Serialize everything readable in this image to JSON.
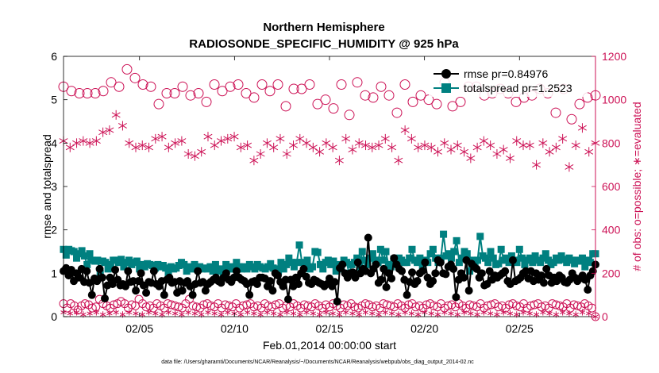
{
  "colors": {
    "rmse": "#000000",
    "spread": "#008080",
    "obs": "#cc1155",
    "axis": "#000000"
  },
  "footer": "data file: /Users/gharamti/Documents/NCAR/Reanalysis/~/Documents/NCAR/Reanalysis/webpub/obs_diag_output_2014-02.nc",
  "chart_data": {
    "type": "line",
    "title": "Northern Hemisphere",
    "subtitle": "RADIOSONDE_SPECIFIC_HUMIDITY @ 925 hPa",
    "xlabel": "Feb.01,2014 00:00:00 start",
    "ylabel_left": "rmse and totalspread",
    "ylabel_right": "# of obs: o=possible; ∗=evaluated",
    "x_day_start": 1,
    "x_day_end": 29,
    "xlim": [
      1,
      29
    ],
    "ylim_left": [
      0,
      6
    ],
    "ylim_right": [
      0,
      1200
    ],
    "xticks": [
      {
        "day": 5,
        "label": "02/05"
      },
      {
        "day": 10,
        "label": "02/10"
      },
      {
        "day": 15,
        "label": "02/15"
      },
      {
        "day": 20,
        "label": "02/20"
      },
      {
        "day": 25,
        "label": "02/25"
      }
    ],
    "yticks_left": [
      "0",
      "1",
      "2",
      "3",
      "4",
      "5",
      "6"
    ],
    "yticks_right": [
      "0",
      "200",
      "400",
      "600",
      "800",
      "1000",
      "1200"
    ],
    "legend": [
      {
        "name": "rmse pr=0.84976",
        "key": "rmse"
      },
      {
        "name": "totalspread pr=1.2523",
        "key": "spread"
      }
    ],
    "rmse": [
      1.05,
      1.12,
      0.95,
      1.08,
      0.82,
      1.0,
      0.9,
      1.1,
      0.8,
      1.05,
      0.78,
      0.5,
      0.88,
      0.82,
      1.1,
      0.9,
      0.42,
      0.72,
      0.9,
      0.75,
      1.08,
      0.85,
      0.72,
      0.75,
      0.7,
      1.05,
      0.8,
      0.82,
      0.6,
      0.82,
      1.0,
      0.72,
      0.55,
      0.8,
      0.78,
      1.05,
      0.75,
      0.7,
      0.82,
      0.5,
      0.85,
      0.9,
      0.78,
      0.8,
      0.55,
      0.82,
      0.6,
      0.78,
      0.82,
      0.7,
      0.5,
      0.75,
      1.05,
      0.78,
      0.8,
      0.6,
      0.75,
      0.8,
      0.85,
      0.9,
      0.82,
      0.78,
      0.9,
      1.0,
      0.85,
      0.8,
      0.9,
      1.05,
      0.9,
      0.85,
      0.82,
      0.75,
      0.5,
      0.8,
      0.82,
      0.75,
      0.9,
      0.9,
      0.88,
      0.7,
      0.82,
      0.6,
      1.0,
      0.95,
      0.8,
      0.7,
      0.85,
      0.4,
      0.85,
      0.7,
      0.9,
      0.75,
      1.0,
      1.1,
      0.92,
      0.78,
      0.75,
      0.85,
      0.82,
      0.78,
      0.75,
      0.7,
      0.75,
      0.88,
      0.7,
      0.8,
      0.35,
      1.12,
      1.2,
      1.0,
      0.9,
      1.0,
      1.02,
      0.9,
      1.25,
      1.0,
      1.1,
      1.05,
      1.82,
      1.0,
      1.1,
      1.2,
      0.78,
      0.85,
      1.1,
      0.68,
      1.0,
      0.88,
      1.35,
      1.2,
      1.1,
      1.05,
      0.85,
      0.5,
      0.8,
      1.02,
      0.75,
      0.82,
      1.0,
      1.05,
      1.25,
      0.9,
      0.75,
      0.82,
      1.0,
      1.3,
      1.25,
      1.0,
      0.98,
      1.15,
      1.2,
      1.1,
      0.45,
      0.85,
      1.0,
      0.9,
      1.3,
      0.6,
      1.22,
      1.15,
      1.1,
      0.9,
      1.0,
      0.72,
      0.75,
      1.05,
      0.85,
      0.95,
      0.9,
      0.95,
      1.0,
      1.05,
      0.82,
      0.75,
      1.3,
      0.82,
      0.85,
      0.9,
      1.0,
      1.05,
      0.88,
      1.05,
      0.82,
      1.0,
      0.85,
      0.95,
      0.78,
      1.1,
      0.95,
      0.78,
      0.9,
      0.82,
      0.95,
      0.9,
      0.8,
      0.78,
      0.85,
      1.0,
      0.9,
      0.82,
      0.88,
      0.95,
      0.85,
      0.62,
      0.95,
      1.05,
      1.2
    ],
    "totalspread": [
      1.55,
      1.42,
      1.55,
      1.52,
      1.5,
      1.35,
      1.45,
      1.52,
      1.4,
      1.2,
      1.45,
      1.3,
      1.28,
      1.3,
      1.0,
      1.28,
      1.25,
      1.1,
      1.2,
      1.3,
      1.3,
      1.25,
      1.32,
      1.15,
      1.25,
      1.3,
      1.2,
      1.25,
      1.28,
      1.1,
      1.2,
      1.15,
      1.22,
      1.2,
      1.18,
      1.12,
      1.2,
      1.15,
      1.18,
      1.12,
      1.0,
      1.15,
      1.1,
      1.12,
      1.18,
      1.25,
      1.2,
      1.05,
      1.15,
      1.1,
      1.2,
      1.1,
      1.15,
      1.1,
      1.12,
      1.1,
      1.15,
      1.05,
      1.2,
      1.05,
      1.1,
      1.02,
      1.2,
      1.1,
      1.15,
      1.1,
      1.25,
      1.15,
      1.1,
      1.15,
      1.1,
      1.2,
      1.15,
      1.1,
      1.2,
      1.15,
      1.12,
      1.1,
      1.15,
      1.22,
      1.12,
      1.1,
      1.05,
      1.25,
      1.1,
      1.2,
      1.35,
      1.25,
      1.15,
      1.25,
      1.65,
      1.25,
      1.2,
      1.3,
      1.1,
      1.15,
      1.5,
      1.48,
      1.2,
      1.1,
      1.25,
      1.3,
      1.2,
      1.28,
      1.05,
      1.2,
      1.1,
      1.3,
      1.25,
      1.0,
      1.2,
      1.25,
      1.35,
      1.15,
      1.5,
      1.3,
      1.2,
      1.35,
      1.45,
      1.3,
      1.25,
      1.55,
      1.3,
      1.5,
      1.2,
      1.15,
      1.32,
      1.25,
      1.35,
      1.3,
      1.25,
      1.25,
      1.35,
      1.55,
      1.3,
      1.25,
      1.35,
      1.1,
      1.3,
      1.25,
      1.45,
      1.55,
      1.35,
      1.25,
      1.35,
      1.9,
      1.4,
      1.45,
      1.35,
      1.5,
      1.75,
      1.25,
      1.35,
      1.5,
      1.45,
      1.05,
      1.3,
      1.2,
      1.3,
      1.85,
      1.4,
      1.35,
      1.25,
      1.5,
      1.35,
      1.2,
      1.22,
      1.55,
      1.3,
      1.35,
      1.25,
      1.4,
      1.3,
      1.25,
      1.55,
      1.35,
      1.2,
      1.3,
      1.35,
      1.25,
      1.4,
      1.3,
      1.25,
      1.35,
      1.45,
      1.3,
      1.2,
      1.25,
      1.35,
      1.3,
      1.4,
      1.32,
      1.25,
      1.35,
      1.3,
      1.22,
      1.3,
      1.28,
      1.35,
      1.15,
      1.3,
      1.25,
      1.45,
      1.45
    ],
    "obs_possible": [
      1060,
      1040,
      1030,
      1030,
      1030,
      1040,
      1080,
      1060,
      1140,
      1100,
      1070,
      1060,
      980,
      1030,
      1030,
      1060,
      1020,
      1030,
      990,
      1070,
      1040,
      1060,
      1070,
      1030,
      1010,
      1070,
      1040,
      1070,
      970,
      1050,
      1050,
      1070,
      980,
      1000,
      960,
      1070,
      930,
      1080,
      1020,
      1010,
      1060,
      1020,
      940,
      1070,
      990,
      1020,
      1000,
      980,
      1080,
      970,
      990,
      1060,
      1060,
      1020,
      1030,
      1050,
      1030,
      990,
      1010,
      1020,
      1050,
      1030,
      940,
      1050,
      910,
      980,
      1010,
      1020
    ],
    "obs_possible_low": [
      60,
      40,
      60,
      50,
      30,
      50,
      60,
      55,
      40,
      45,
      80,
      60,
      50,
      40,
      55,
      60,
      70,
      60,
      40,
      55,
      50,
      80,
      60,
      45,
      50,
      40,
      60,
      50,
      40,
      60,
      55,
      50,
      45,
      40,
      60,
      80,
      50,
      45,
      40,
      55,
      60,
      50,
      45,
      60,
      40,
      55,
      50,
      45,
      60,
      40,
      50,
      55,
      60,
      45,
      50,
      40,
      60,
      50,
      45,
      55,
      60,
      40,
      50,
      45,
      60,
      50,
      40,
      55,
      50,
      45,
      60,
      50,
      40,
      55,
      45,
      60,
      50,
      40,
      55,
      50,
      60,
      45,
      40,
      50,
      60,
      55,
      45,
      50,
      40,
      60,
      55,
      50,
      45,
      60,
      50,
      40,
      55,
      60,
      45,
      50,
      40,
      55,
      60,
      50,
      45,
      60,
      40,
      50,
      55,
      45,
      60,
      50,
      40,
      55,
      50,
      45,
      60,
      40,
      50,
      55,
      60,
      45,
      50,
      40,
      55,
      60,
      50,
      45,
      60,
      40,
      50,
      55,
      60,
      45,
      50,
      40,
      60,
      55,
      50,
      45,
      60,
      40,
      55,
      50,
      45,
      60,
      50,
      40,
      0
    ],
    "obs_evaluated": [
      810,
      780,
      800,
      810,
      800,
      810,
      850,
      860,
      930,
      880,
      800,
      780,
      790,
      780,
      820,
      830,
      780,
      800,
      810,
      750,
      740,
      760,
      830,
      790,
      810,
      820,
      830,
      780,
      790,
      720,
      750,
      800,
      780,
      820,
      750,
      790,
      820,
      800,
      780,
      760,
      800,
      780,
      720,
      820,
      770,
      800,
      790,
      780,
      790,
      820,
      780,
      720,
      860,
      820,
      780,
      790,
      780,
      760,
      800,
      770,
      790,
      760,
      730,
      780,
      810,
      790,
      750,
      770,
      730,
      810,
      790,
      790,
      700,
      800,
      760,
      780,
      820,
      690,
      790,
      870,
      760,
      800
    ],
    "obs_evaluated_low": [
      20,
      15,
      20,
      10,
      15,
      20,
      10,
      15,
      20,
      10,
      20,
      15,
      10,
      20,
      15,
      10,
      20,
      15,
      10,
      20,
      15,
      10,
      20,
      15,
      10,
      20,
      15,
      10,
      20,
      15,
      10,
      20,
      15,
      10,
      20,
      15,
      10,
      20,
      15,
      10,
      20,
      15,
      10,
      20,
      15,
      10,
      20,
      15,
      10,
      20,
      15,
      10,
      20,
      15,
      10,
      20,
      15,
      10,
      20,
      15,
      10,
      20,
      15,
      10,
      20,
      15,
      10,
      20,
      15,
      10,
      20,
      15,
      10,
      20,
      15,
      10,
      20,
      15,
      10,
      20,
      15,
      0
    ]
  }
}
